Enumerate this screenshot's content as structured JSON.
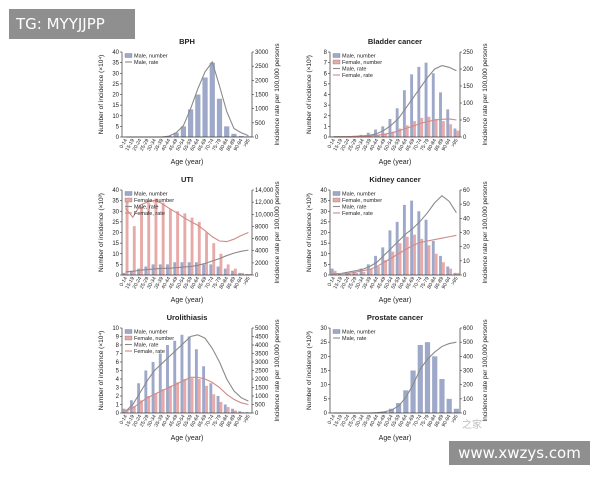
{
  "watermarks": {
    "top_left": "TG: MYYJJPP",
    "bottom_right": "www.xwzys.com",
    "faint": "之家"
  },
  "colors": {
    "male_bar": "#9ea8c8",
    "female_bar": "#e7aaa8",
    "male_line": "#8a8a8a",
    "female_line": "#d08a86",
    "axis": "#333333"
  },
  "age_groups": [
    "0-14",
    "15-19",
    "20-24",
    "25-29",
    "30-34",
    "35-39",
    "40-44",
    "45-49",
    "50-54",
    "55-59",
    "60-64",
    "65-69",
    "70-74",
    "75-79",
    "80-84",
    "85-89",
    "90-94",
    ">95"
  ],
  "chart_data": [
    {
      "id": "bph",
      "type": "bar",
      "title": "BPH",
      "xlabel": "Age (year)",
      "ylabel": "Number of incidence (×10⁴)",
      "y2label": "Incidence rate per 100,000 persons",
      "ylim": [
        0,
        40
      ],
      "yticks": [
        0,
        5,
        10,
        15,
        20,
        25,
        30,
        35,
        40
      ],
      "y2lim": [
        0,
        3000
      ],
      "y2ticks": [
        "0",
        "500",
        "1000",
        "1500",
        "2000",
        "2500",
        "3000"
      ],
      "legend": [
        "Male, number",
        "Male, rate"
      ],
      "series": [
        {
          "name": "Male, number",
          "kind": "bar",
          "axis": "left",
          "color": "male_bar",
          "values": [
            0,
            0,
            0,
            0,
            0,
            0,
            0.5,
            2,
            5,
            13,
            20,
            28,
            35,
            18,
            5,
            1.5,
            0.5,
            0.3
          ]
        },
        {
          "name": "Male, rate",
          "kind": "line",
          "axis": "right",
          "color": "male_line",
          "values": [
            0,
            0,
            0,
            0,
            0,
            0,
            30,
            150,
            400,
            1000,
            1700,
            2300,
            2650,
            1800,
            900,
            300,
            150,
            50
          ]
        }
      ]
    },
    {
      "id": "bladder",
      "type": "bar",
      "title": "Bladder cancer",
      "xlabel": "Age (year)",
      "ylabel": "Number of incidence (×10³)",
      "y2label": "Incidence rate per 100,000 persons",
      "ylim": [
        0,
        8
      ],
      "yticks": [
        0,
        1,
        2,
        3,
        4,
        5,
        6,
        7,
        8
      ],
      "y2lim": [
        0,
        250
      ],
      "y2ticks": [
        "0",
        "50",
        "100",
        "150",
        "200",
        "250"
      ],
      "legend": [
        "Male, number",
        "Female, number",
        "Male, rate",
        "Female, rate"
      ],
      "series": [
        {
          "name": "Male, number",
          "kind": "bar",
          "axis": "left",
          "color": "male_bar",
          "values": [
            0.05,
            0.05,
            0.05,
            0.1,
            0.2,
            0.4,
            0.7,
            1.0,
            1.7,
            2.7,
            4.4,
            5.9,
            6.6,
            7.0,
            6.0,
            4.2,
            2.6,
            0.8
          ]
        },
        {
          "name": "Female, number",
          "kind": "bar",
          "axis": "left",
          "color": "female_bar",
          "values": [
            0.02,
            0.02,
            0.03,
            0.05,
            0.08,
            0.12,
            0.2,
            0.3,
            0.5,
            0.8,
            1.1,
            1.5,
            1.8,
            1.9,
            1.7,
            1.5,
            1.2,
            0.6
          ]
        },
        {
          "name": "Male, rate",
          "kind": "line",
          "axis": "right",
          "color": "male_line",
          "values": [
            1,
            1,
            1,
            2,
            3,
            5,
            10,
            20,
            35,
            55,
            85,
            115,
            145,
            175,
            200,
            210,
            205,
            195
          ]
        },
        {
          "name": "Female, rate",
          "kind": "line",
          "axis": "right",
          "color": "female_line",
          "values": [
            0,
            0,
            1,
            1,
            2,
            3,
            5,
            8,
            12,
            18,
            25,
            32,
            40,
            45,
            50,
            52,
            53,
            50
          ]
        }
      ]
    },
    {
      "id": "uti",
      "type": "bar",
      "title": "UTI",
      "xlabel": "Age (year)",
      "ylabel": "Number of incidence (×10³)",
      "y2label": "Incidence rate per 100,000 persons",
      "ylim": [
        0,
        40
      ],
      "yticks": [
        0,
        5,
        10,
        15,
        20,
        25,
        30,
        35,
        40
      ],
      "y2lim": [
        0,
        14000
      ],
      "y2ticks": [
        "0",
        "2000",
        "4000",
        "6000",
        "8000",
        "10,000",
        "12,000",
        "14,000"
      ],
      "legend": [
        "Male, number",
        "Female, number",
        "Male, rate",
        "Female, rate"
      ],
      "series": [
        {
          "name": "Male, number",
          "kind": "bar",
          "axis": "left",
          "color": "male_bar",
          "values": [
            1,
            2,
            3,
            4,
            5,
            5,
            5,
            6,
            6,
            6,
            6,
            5,
            5,
            4,
            3,
            2,
            1,
            0.5
          ]
        },
        {
          "name": "Female, number",
          "kind": "bar",
          "axis": "left",
          "color": "female_bar",
          "values": [
            35,
            23,
            32,
            34,
            36,
            34,
            31,
            30,
            29,
            27,
            25,
            20,
            15,
            10,
            5,
            3,
            1,
            0.5
          ]
        },
        {
          "name": "Male, rate",
          "kind": "line",
          "axis": "right",
          "color": "male_line",
          "values": [
            500,
            600,
            800,
            900,
            1000,
            1100,
            1100,
            1200,
            1300,
            1400,
            1600,
            1900,
            2300,
            2700,
            3200,
            3600,
            3900,
            4100
          ]
        },
        {
          "name": "Female, rate",
          "kind": "line",
          "axis": "right",
          "color": "female_line",
          "values": [
            11000,
            9500,
            11500,
            12000,
            12300,
            11800,
            11000,
            10300,
            9500,
            8800,
            8200,
            7300,
            6300,
            5600,
            5500,
            5900,
            6500,
            7000
          ]
        }
      ]
    },
    {
      "id": "kidney",
      "type": "bar",
      "title": "Kidney cancer",
      "xlabel": "Age (year)",
      "ylabel": "Number of incidence (×10³)",
      "y2label": "Incidence rate per 100,000 persons",
      "ylim": [
        0,
        40
      ],
      "yticks": [
        0,
        5,
        10,
        15,
        20,
        25,
        30,
        35,
        40
      ],
      "y2lim": [
        0,
        60
      ],
      "y2ticks": [
        "0",
        "10",
        "20",
        "30",
        "40",
        "50",
        "60"
      ],
      "legend": [
        "Male, number",
        "Female, number",
        "Male, rate",
        "Female, rate"
      ],
      "series": [
        {
          "name": "Male, number",
          "kind": "bar",
          "axis": "left",
          "color": "male_bar",
          "values": [
            3,
            0.5,
            1,
            1.5,
            3,
            5,
            9,
            13,
            21,
            25,
            33,
            35,
            30,
            26,
            16,
            9,
            4,
            1
          ]
        },
        {
          "name": "Female, number",
          "kind": "bar",
          "axis": "left",
          "color": "female_bar",
          "values": [
            2,
            0.3,
            0.5,
            1,
            1.5,
            3,
            4,
            7,
            11,
            15,
            18,
            19,
            17,
            14,
            10,
            6,
            3,
            1
          ]
        },
        {
          "name": "Male, rate",
          "kind": "line",
          "axis": "right",
          "color": "male_line",
          "values": [
            1,
            1,
            2,
            3,
            4,
            6,
            9,
            14,
            19,
            24,
            29,
            33,
            38,
            44,
            51,
            56,
            52,
            44
          ]
        },
        {
          "name": "Female, rate",
          "kind": "line",
          "axis": "right",
          "color": "female_line",
          "values": [
            1,
            1,
            1,
            2,
            3,
            4,
            6,
            9,
            12,
            15,
            18,
            21,
            23,
            24,
            25,
            26,
            27,
            28
          ]
        }
      ]
    },
    {
      "id": "urolithiasis",
      "type": "bar",
      "title": "Urolithiasis",
      "xlabel": "Age (year)",
      "ylabel": "Number of incidence (×10⁴)",
      "y2label": "Incidence rate per 100,000 persons",
      "ylim": [
        0,
        10
      ],
      "yticks": [
        0,
        1,
        2,
        3,
        4,
        5,
        6,
        7,
        8,
        9,
        10
      ],
      "y2lim": [
        0,
        5000
      ],
      "y2ticks": [
        "0",
        "500",
        "1000",
        "1500",
        "2000",
        "2500",
        "3000",
        "3500",
        "4000",
        "4500",
        "5000"
      ],
      "legend": [
        "Male, number",
        "Female, number",
        "Male, rate",
        "Female, rate"
      ],
      "series": [
        {
          "name": "Male, number",
          "kind": "bar",
          "axis": "left",
          "color": "male_bar",
          "values": [
            0.5,
            1.5,
            3.5,
            5,
            6,
            7,
            8,
            8.5,
            9.2,
            9,
            7.5,
            5.5,
            3.5,
            2,
            1,
            0.5,
            0.2,
            0.1
          ]
        },
        {
          "name": "Female, number",
          "kind": "bar",
          "axis": "left",
          "color": "female_bar",
          "values": [
            0.3,
            0.8,
            1.5,
            2,
            2.3,
            2.8,
            3.2,
            3.6,
            4,
            4.1,
            4,
            3.2,
            2.2,
            1.3,
            0.7,
            0.3,
            0.1,
            0.05
          ]
        },
        {
          "name": "Male, rate",
          "kind": "line",
          "axis": "right",
          "color": "male_line",
          "values": [
            100,
            500,
            1200,
            1900,
            2500,
            2900,
            3300,
            3700,
            4100,
            4500,
            4600,
            4400,
            3800,
            3000,
            2000,
            1300,
            900,
            700
          ]
        },
        {
          "name": "Female, rate",
          "kind": "line",
          "axis": "right",
          "color": "female_line",
          "values": [
            100,
            300,
            600,
            900,
            1100,
            1300,
            1500,
            1700,
            1900,
            2100,
            2100,
            2000,
            1800,
            1500,
            1100,
            800,
            600,
            500
          ]
        }
      ]
    },
    {
      "id": "prostate",
      "type": "bar",
      "title": "Prostate cancer",
      "xlabel": "Age (year)",
      "ylabel": "Number of incidence (×10³)",
      "y2label": "Incidence rate per 100,000 persons",
      "ylim": [
        0,
        30
      ],
      "yticks": [
        0,
        5,
        10,
        15,
        20,
        25,
        30
      ],
      "y2lim": [
        0,
        600
      ],
      "y2ticks": [
        "0",
        "100",
        "200",
        "300",
        "400",
        "500",
        "600"
      ],
      "legend": [
        "Male, number",
        "Male, rate"
      ],
      "series": [
        {
          "name": "Male, number",
          "kind": "bar",
          "axis": "left",
          "color": "male_bar",
          "values": [
            0,
            0,
            0,
            0,
            0,
            0,
            0.1,
            0.5,
            1.5,
            3.5,
            8,
            15,
            24,
            25,
            20,
            12,
            5,
            1.5
          ]
        },
        {
          "name": "Male, rate",
          "kind": "line",
          "axis": "right",
          "color": "male_line",
          "values": [
            0,
            0,
            0,
            0,
            0,
            0,
            2,
            8,
            20,
            50,
            110,
            200,
            310,
            380,
            430,
            470,
            490,
            500
          ]
        }
      ]
    }
  ]
}
